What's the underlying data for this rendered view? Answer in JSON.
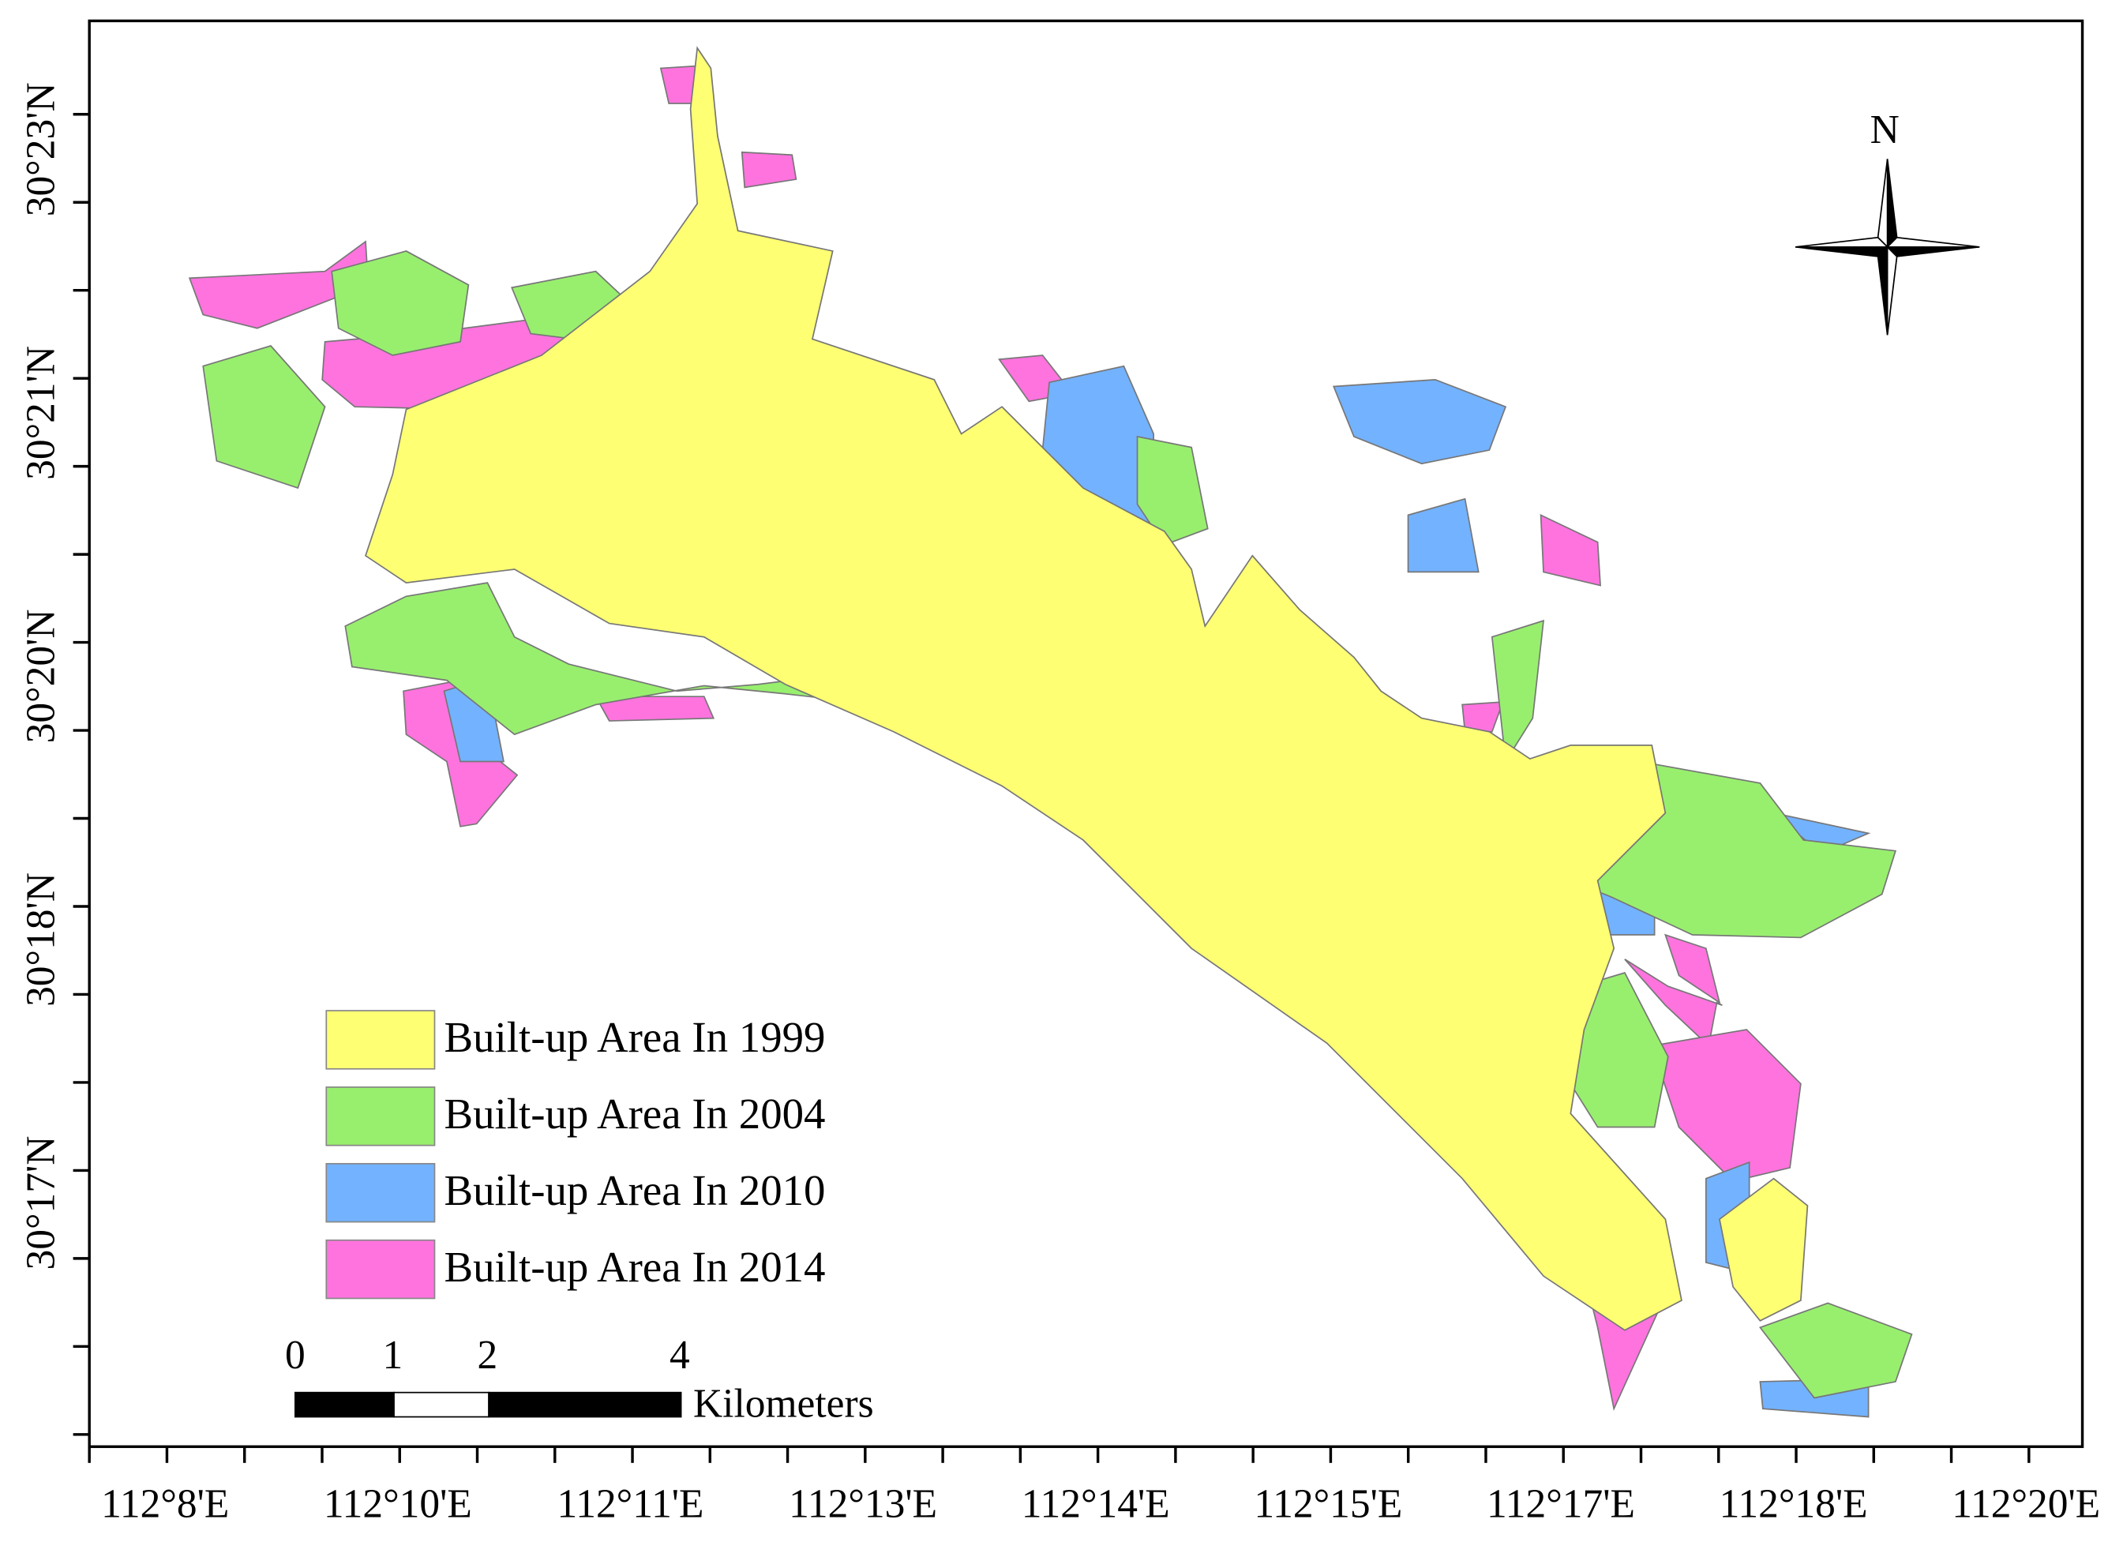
{
  "map": {
    "x_axis_labels": [
      "112°8'E",
      "112°10'E",
      "112°11'E",
      "112°13'E",
      "112°14'E",
      "112°15'E",
      "112°17'E",
      "112°18'E",
      "112°20'E"
    ],
    "y_axis_labels": [
      "30°23'N",
      "30°21'N",
      "30°20'N",
      "30°18'N",
      "30°17'N"
    ],
    "north_label": "N",
    "legend": [
      {
        "label": "Built-up Area In 1999",
        "color": "#ffff73"
      },
      {
        "label": "Built-up Area In 2004",
        "color": "#98ef6e"
      },
      {
        "label": "Built-up Area In 2010",
        "color": "#73b2ff"
      },
      {
        "label": "Built-up Area In 2014",
        "color": "#ff73df"
      }
    ],
    "scale_bar": {
      "labels": [
        "0",
        "1",
        "2",
        "4"
      ],
      "unit": "Kilometers"
    }
  }
}
